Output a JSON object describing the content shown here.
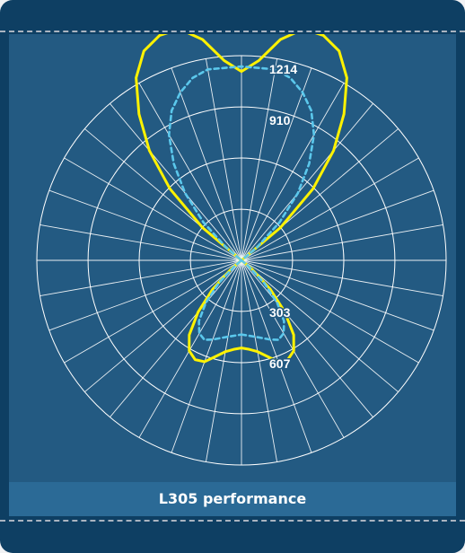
{
  "caption": "L305 performance",
  "colors": {
    "frame": "#0e3f63",
    "plot_background": "#235a82",
    "grid": "#ffffff",
    "series_solid": "#fff200",
    "series_dashed": "#5bc8ec"
  },
  "chart_data": {
    "type": "polar",
    "grid": true,
    "radial_max": 1214,
    "ring_values": [
      303,
      607,
      910,
      1214
    ],
    "ring_labels": [
      "303",
      "607",
      "910",
      "1214"
    ],
    "angle_step_deg": 10,
    "series": [
      {
        "style": "solid",
        "color": "#fff200",
        "points": [
          {
            "angle": 0,
            "value": 520
          },
          {
            "angle": 5,
            "value": 530
          },
          {
            "angle": 10,
            "value": 550
          },
          {
            "angle": 15,
            "value": 590
          },
          {
            "angle": 20,
            "value": 640
          },
          {
            "angle": 25,
            "value": 650
          },
          {
            "angle": 30,
            "value": 620
          },
          {
            "angle": 35,
            "value": 540
          },
          {
            "angle": 40,
            "value": 400
          },
          {
            "angle": 45,
            "value": 240
          },
          {
            "angle": 50,
            "value": 80
          },
          {
            "angle": 55,
            "value": 0
          },
          {
            "angle": 125,
            "value": 0
          },
          {
            "angle": 130,
            "value": 300
          },
          {
            "angle": 135,
            "value": 600
          },
          {
            "angle": 140,
            "value": 850
          },
          {
            "angle": 145,
            "value": 1060
          },
          {
            "angle": 150,
            "value": 1250
          },
          {
            "angle": 155,
            "value": 1370
          },
          {
            "angle": 160,
            "value": 1420
          },
          {
            "angle": 165,
            "value": 1420
          },
          {
            "angle": 170,
            "value": 1330
          },
          {
            "angle": 175,
            "value": 1190
          },
          {
            "angle": 180,
            "value": 1120
          },
          {
            "angle": 185,
            "value": 1190
          },
          {
            "angle": 190,
            "value": 1330
          },
          {
            "angle": 195,
            "value": 1420
          },
          {
            "angle": 200,
            "value": 1420
          },
          {
            "angle": 205,
            "value": 1370
          },
          {
            "angle": 210,
            "value": 1250
          },
          {
            "angle": 215,
            "value": 1060
          },
          {
            "angle": 220,
            "value": 850
          },
          {
            "angle": 225,
            "value": 600
          },
          {
            "angle": 230,
            "value": 300
          },
          {
            "angle": 235,
            "value": 0
          },
          {
            "angle": 305,
            "value": 0
          },
          {
            "angle": 310,
            "value": 80
          },
          {
            "angle": 315,
            "value": 240
          },
          {
            "angle": 320,
            "value": 400
          },
          {
            "angle": 325,
            "value": 540
          },
          {
            "angle": 330,
            "value": 620
          },
          {
            "angle": 335,
            "value": 650
          },
          {
            "angle": 340,
            "value": 640
          },
          {
            "angle": 345,
            "value": 590
          },
          {
            "angle": 350,
            "value": 550
          },
          {
            "angle": 355,
            "value": 530
          }
        ]
      },
      {
        "style": "dashed",
        "color": "#5bc8ec",
        "points": [
          {
            "angle": 0,
            "value": 440
          },
          {
            "angle": 10,
            "value": 460
          },
          {
            "angle": 20,
            "value": 500
          },
          {
            "angle": 25,
            "value": 520
          },
          {
            "angle": 30,
            "value": 500
          },
          {
            "angle": 35,
            "value": 440
          },
          {
            "angle": 40,
            "value": 330
          },
          {
            "angle": 45,
            "value": 190
          },
          {
            "angle": 50,
            "value": 50
          },
          {
            "angle": 53,
            "value": 0
          },
          {
            "angle": 127,
            "value": 0
          },
          {
            "angle": 130,
            "value": 120
          },
          {
            "angle": 135,
            "value": 320
          },
          {
            "angle": 140,
            "value": 520
          },
          {
            "angle": 145,
            "value": 700
          },
          {
            "angle": 150,
            "value": 860
          },
          {
            "angle": 155,
            "value": 980
          },
          {
            "angle": 160,
            "value": 1060
          },
          {
            "angle": 165,
            "value": 1120
          },
          {
            "angle": 170,
            "value": 1150
          },
          {
            "angle": 180,
            "value": 1150
          },
          {
            "angle": 190,
            "value": 1150
          },
          {
            "angle": 195,
            "value": 1120
          },
          {
            "angle": 200,
            "value": 1060
          },
          {
            "angle": 205,
            "value": 980
          },
          {
            "angle": 210,
            "value": 860
          },
          {
            "angle": 215,
            "value": 700
          },
          {
            "angle": 220,
            "value": 520
          },
          {
            "angle": 225,
            "value": 320
          },
          {
            "angle": 230,
            "value": 120
          },
          {
            "angle": 233,
            "value": 0
          },
          {
            "angle": 307,
            "value": 0
          },
          {
            "angle": 310,
            "value": 50
          },
          {
            "angle": 315,
            "value": 190
          },
          {
            "angle": 320,
            "value": 330
          },
          {
            "angle": 325,
            "value": 440
          },
          {
            "angle": 330,
            "value": 500
          },
          {
            "angle": 335,
            "value": 520
          },
          {
            "angle": 340,
            "value": 500
          },
          {
            "angle": 350,
            "value": 460
          }
        ]
      }
    ]
  }
}
